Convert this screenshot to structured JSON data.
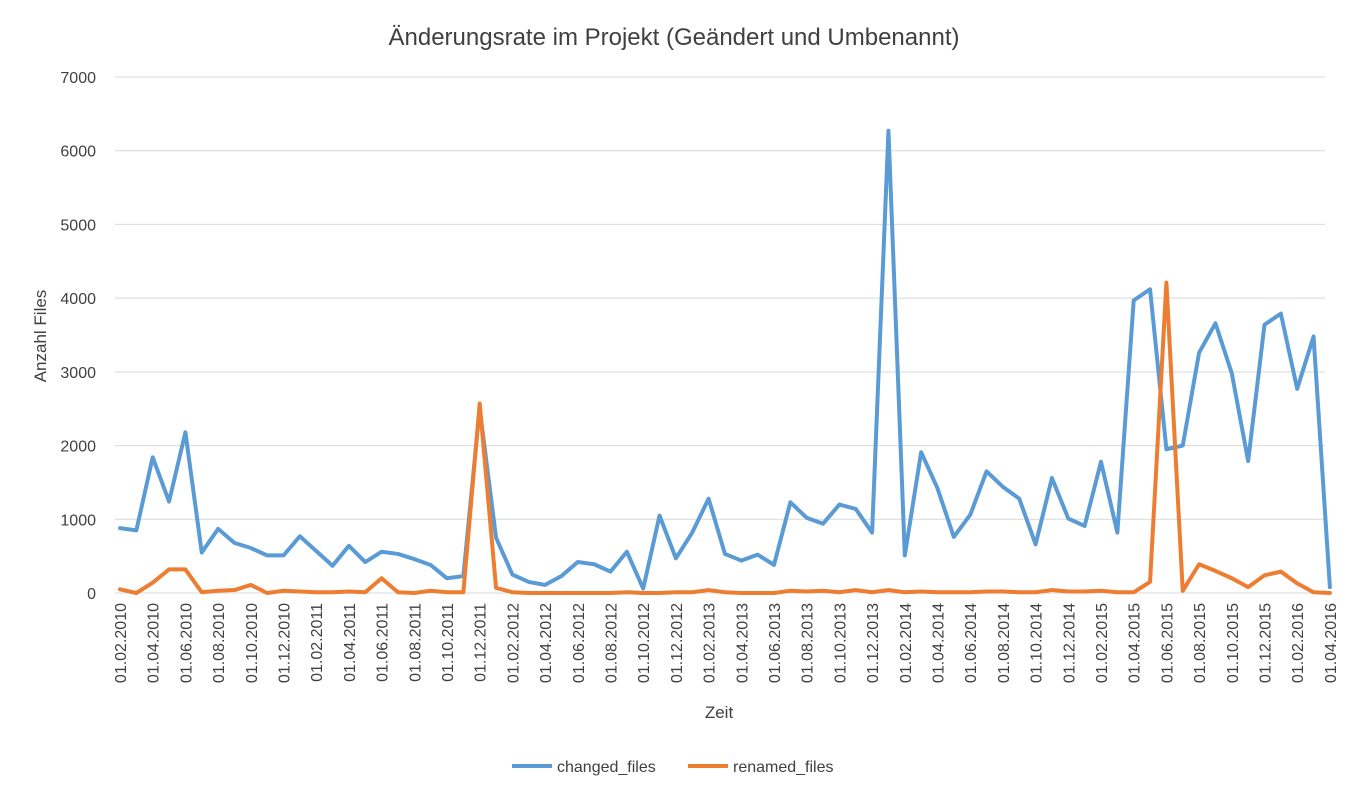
{
  "chart_data": {
    "type": "line",
    "title": "Änderungsrate im Projekt (Geändert und Umbenannt)",
    "xlabel": "Zeit",
    "ylabel": "Anzahl Files",
    "ylim": [
      0,
      7000
    ],
    "yticks": [
      "0",
      "1000",
      "2000",
      "3000",
      "4000",
      "5000",
      "6000",
      "7000"
    ],
    "grid": "horizontal",
    "legend_position": "bottom",
    "x": [
      "01.02.2010",
      "01.03.2010",
      "01.04.2010",
      "01.05.2010",
      "01.06.2010",
      "01.07.2010",
      "01.08.2010",
      "01.09.2010",
      "01.10.2010",
      "01.11.2010",
      "01.12.2010",
      "01.01.2011",
      "01.02.2011",
      "01.03.2011",
      "01.04.2011",
      "01.05.2011",
      "01.06.2011",
      "01.07.2011",
      "01.08.2011",
      "01.09.2011",
      "01.10.2011",
      "01.11.2011",
      "01.12.2011",
      "01.01.2012",
      "01.02.2012",
      "01.03.2012",
      "01.04.2012",
      "01.05.2012",
      "01.06.2012",
      "01.07.2012",
      "01.08.2012",
      "01.09.2012",
      "01.10.2012",
      "01.11.2012",
      "01.12.2012",
      "01.01.2013",
      "01.02.2013",
      "01.03.2013",
      "01.04.2013",
      "01.05.2013",
      "01.06.2013",
      "01.07.2013",
      "01.08.2013",
      "01.09.2013",
      "01.10.2013",
      "01.11.2013",
      "01.12.2013",
      "01.01.2014",
      "01.02.2014",
      "01.03.2014",
      "01.04.2014",
      "01.05.2014",
      "01.06.2014",
      "01.07.2014",
      "01.08.2014",
      "01.09.2014",
      "01.10.2014",
      "01.11.2014",
      "01.12.2014",
      "01.01.2015",
      "01.02.2015",
      "01.03.2015",
      "01.04.2015",
      "01.05.2015",
      "01.06.2015",
      "01.07.2015",
      "01.08.2015",
      "01.09.2015",
      "01.10.2015",
      "01.11.2015",
      "01.12.2015",
      "01.01.2016",
      "01.02.2016",
      "01.03.2016",
      "01.04.2016"
    ],
    "x_tick_labels": [
      "01.02.2010",
      "01.04.2010",
      "01.06.2010",
      "01.08.2010",
      "01.10.2010",
      "01.12.2010",
      "01.02.2011",
      "01.04.2011",
      "01.06.2011",
      "01.08.2011",
      "01.10.2011",
      "01.12.2011",
      "01.02.2012",
      "01.04.2012",
      "01.06.2012",
      "01.08.2012",
      "01.10.2012",
      "01.12.2012",
      "01.02.2013",
      "01.04.2013",
      "01.06.2013",
      "01.08.2013",
      "01.10.2013",
      "01.12.2013",
      "01.02.2014",
      "01.04.2014",
      "01.06.2014",
      "01.08.2014",
      "01.10.2014",
      "01.12.2014",
      "01.02.2015",
      "01.04.2015",
      "01.06.2015",
      "01.08.2015",
      "01.10.2015",
      "01.12.2015",
      "01.02.2016",
      "01.04.2016"
    ],
    "series": [
      {
        "name": "changed_files",
        "color": "#5b9bd5",
        "values": [
          880,
          850,
          1840,
          1240,
          2180,
          550,
          870,
          680,
          610,
          510,
          510,
          770,
          570,
          370,
          640,
          420,
          560,
          530,
          460,
          380,
          200,
          230,
          2500,
          750,
          250,
          150,
          110,
          230,
          420,
          390,
          290,
          560,
          60,
          1050,
          470,
          820,
          1280,
          530,
          440,
          520,
          380,
          1230,
          1020,
          940,
          1200,
          1140,
          820,
          6270,
          510,
          1910,
          1420,
          760,
          1060,
          1650,
          1440,
          1280,
          660,
          1560,
          1010,
          910,
          1780,
          820,
          3970,
          4120,
          1950,
          2000,
          3260,
          3660,
          2980,
          1790,
          3640,
          3790,
          2770,
          3480,
          80
        ]
      },
      {
        "name": "renamed_files",
        "color": "#ed7d31",
        "values": [
          50,
          0,
          140,
          320,
          320,
          10,
          30,
          40,
          110,
          0,
          30,
          20,
          10,
          10,
          20,
          10,
          200,
          10,
          0,
          30,
          10,
          10,
          2570,
          70,
          10,
          0,
          0,
          0,
          0,
          0,
          0,
          10,
          0,
          0,
          10,
          10,
          40,
          10,
          0,
          0,
          0,
          30,
          20,
          30,
          10,
          40,
          10,
          40,
          10,
          20,
          10,
          10,
          10,
          20,
          20,
          10,
          10,
          40,
          20,
          20,
          30,
          10,
          10,
          150,
          4210,
          30,
          390,
          300,
          200,
          80,
          240,
          290,
          130,
          10,
          0
        ]
      }
    ]
  }
}
